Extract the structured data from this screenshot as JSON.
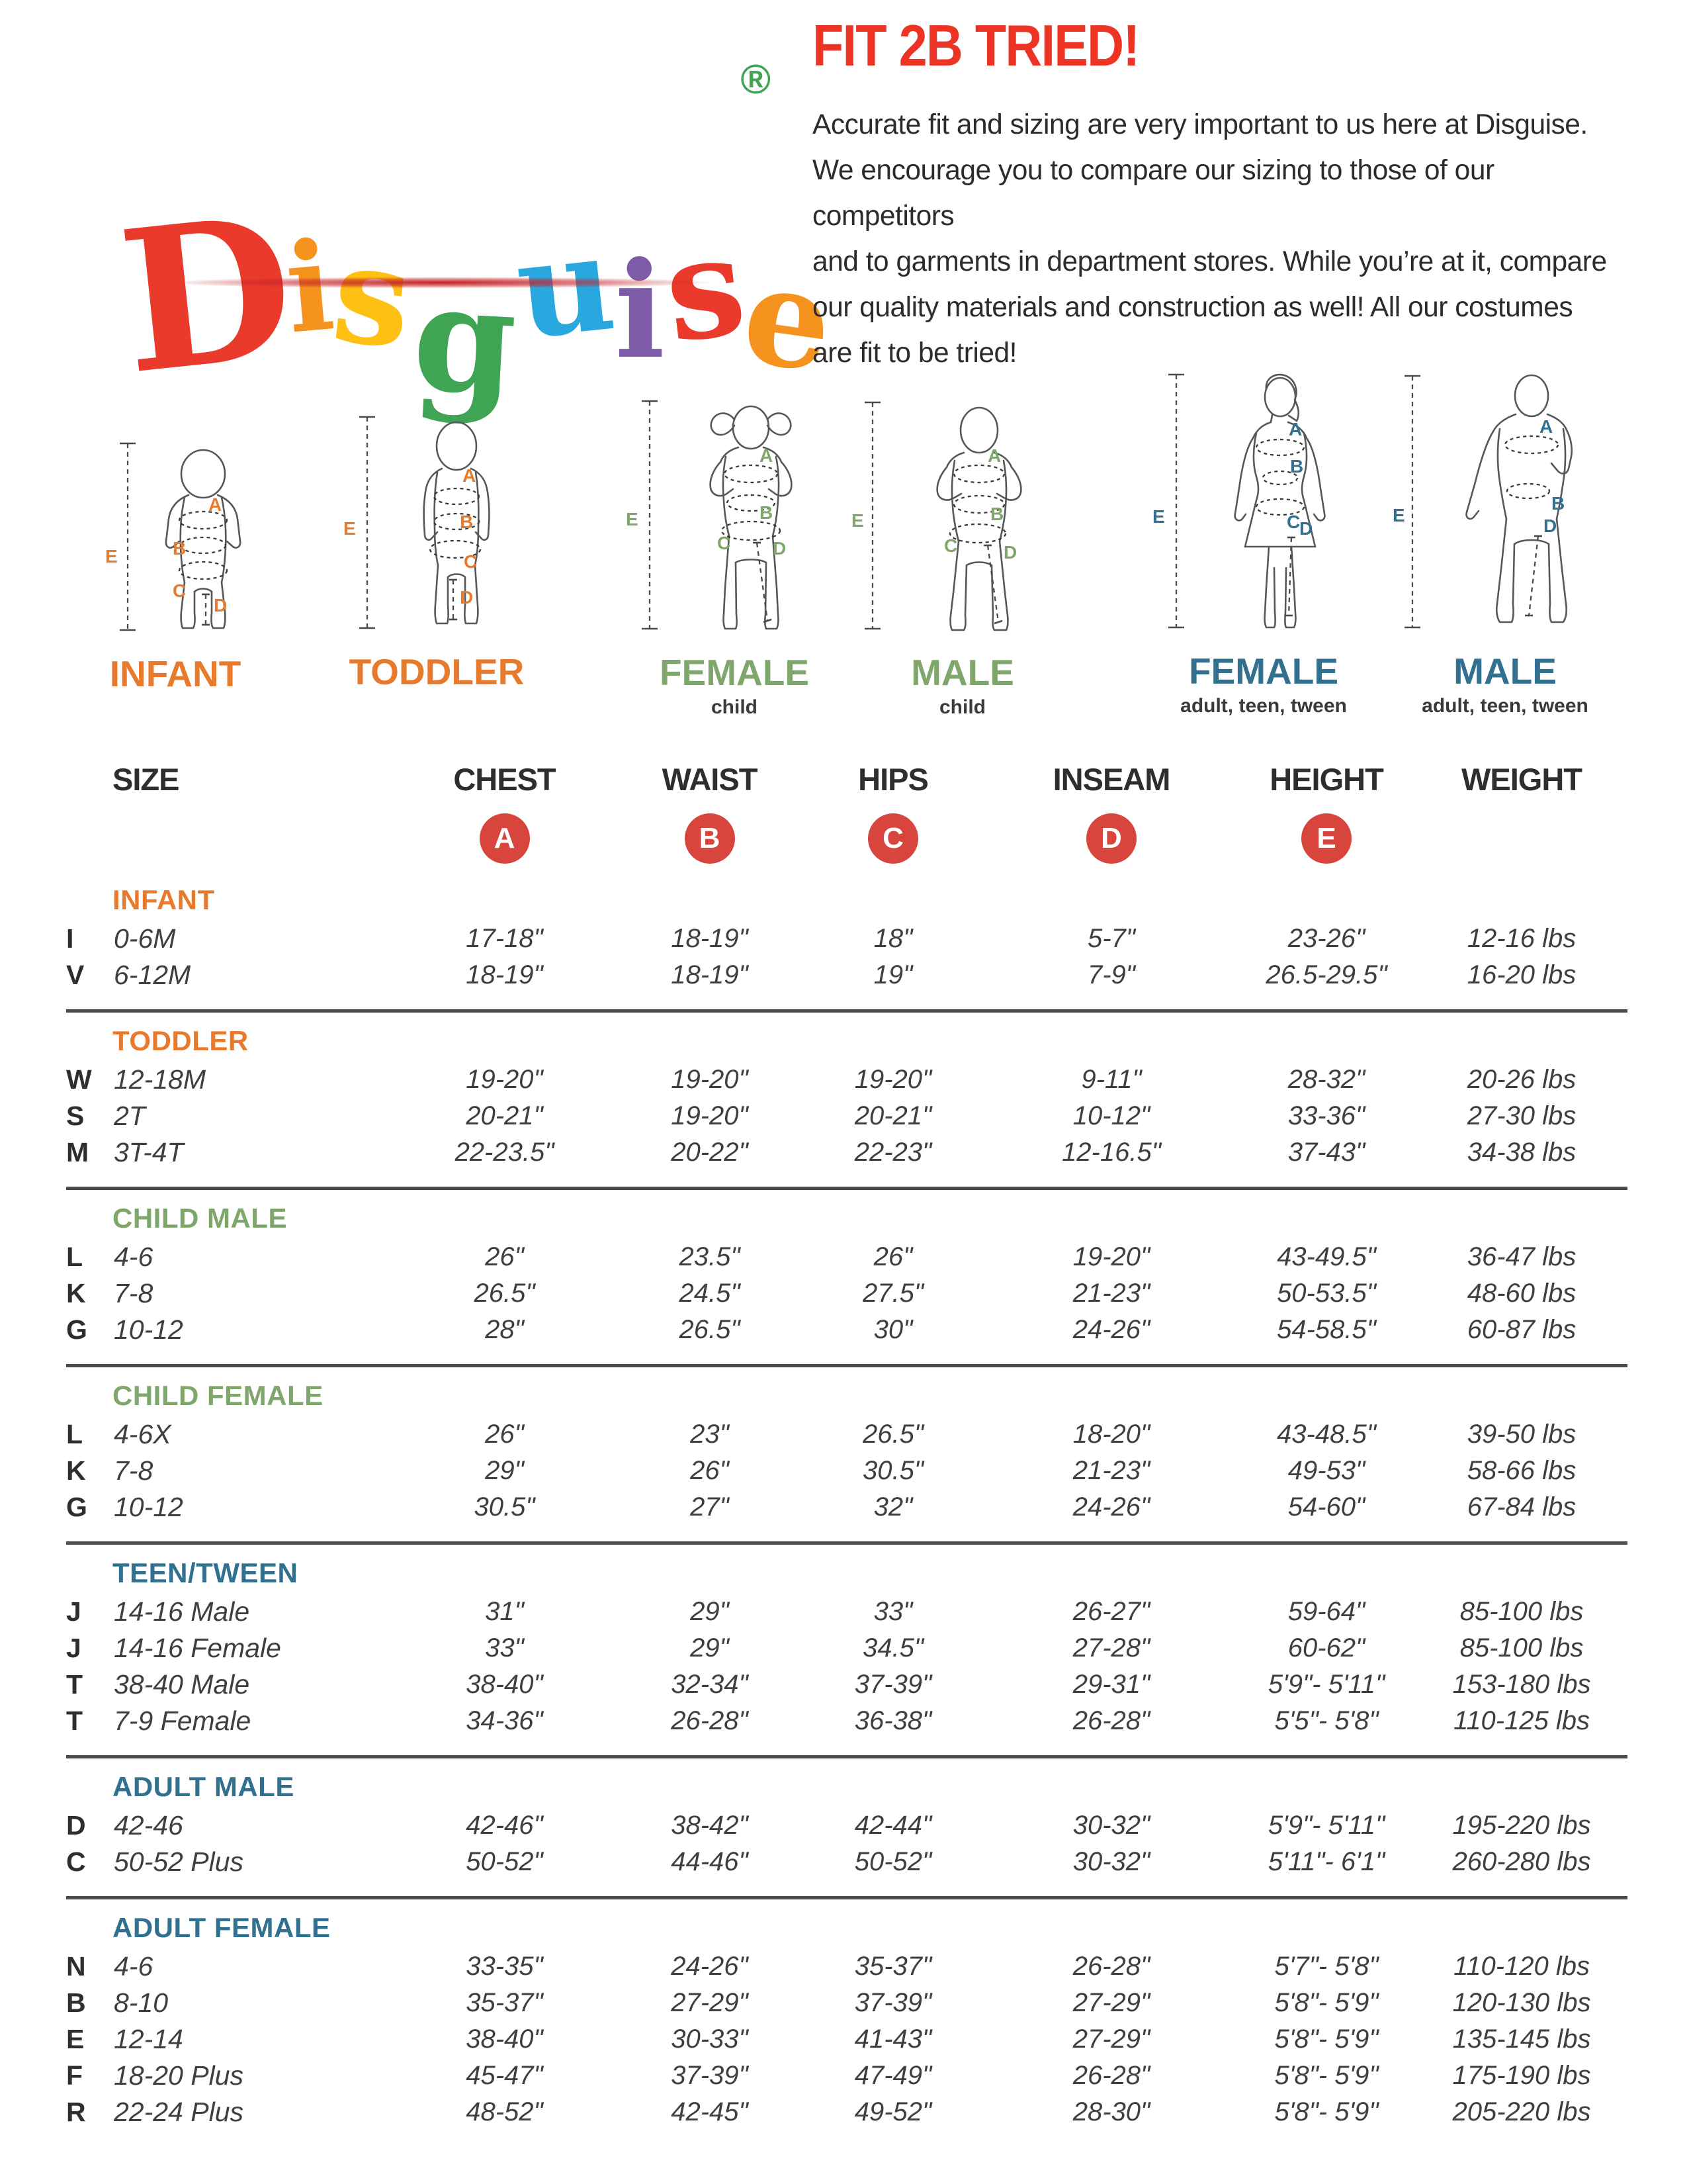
{
  "logo": {
    "word": "Disguise",
    "letters": [
      {
        "char": "D",
        "color": "#E93A2C"
      },
      {
        "char": "i",
        "color": "#F6921E"
      },
      {
        "char": "s",
        "color": "#FDC013"
      },
      {
        "char": "g",
        "color": "#3FA454"
      },
      {
        "char": "u",
        "color": "#29A8E0"
      },
      {
        "char": "i",
        "color": "#7E5BA6"
      },
      {
        "char": "s",
        "color": "#E93A2C"
      },
      {
        "char": "e",
        "color": "#F6921E"
      }
    ],
    "registered_mark": "®",
    "registered_color": "#3FA454",
    "underline_color": "#C42127"
  },
  "header": {
    "title": "FIT 2B TRIED!",
    "title_color": "#EC3324",
    "paragraph": "Accurate fit and sizing are very important to us here at Disguise.\nWe encourage you to compare our sizing to those of our competitors\nand to garments in department stores. While you’re at it, compare\nour quality materials and construction as well! All our costumes\nare fit to be tried!"
  },
  "measure": {
    "letters": [
      "A",
      "B",
      "C",
      "D",
      "E"
    ]
  },
  "figures": [
    {
      "label": "INFANT",
      "sublabel": "",
      "color": "#E87A2E"
    },
    {
      "label": "TODDLER",
      "sublabel": "",
      "color": "#E87A2E"
    },
    {
      "label": "FEMALE",
      "sublabel": "child",
      "color": "#7FA66B"
    },
    {
      "label": "MALE",
      "sublabel": "child",
      "color": "#7FA66B"
    },
    {
      "label": "FEMALE",
      "sublabel": "adult, teen, tween",
      "color": "#31708F"
    },
    {
      "label": "MALE",
      "sublabel": "adult, teen, tween",
      "color": "#31708F"
    }
  ],
  "table": {
    "columns": [
      "SIZE",
      "CHEST",
      "WAIST",
      "HIPS",
      "INSEAM",
      "HEIGHT",
      "WEIGHT"
    ],
    "badge_letters": [
      "A",
      "B",
      "C",
      "D",
      "E"
    ],
    "badge_color": "#D8453C",
    "sections": [
      {
        "name": "INFANT",
        "color": "#E87A2E",
        "rows": [
          {
            "code": "I",
            "size": "0-6M",
            "values": [
              "17-18\"",
              "18-19\"",
              "18\"",
              "5-7\"",
              "23-26\"",
              "12-16 lbs"
            ]
          },
          {
            "code": "V",
            "size": "6-12M",
            "values": [
              "18-19\"",
              "18-19\"",
              "19\"",
              "7-9\"",
              "26.5-29.5\"",
              "16-20 lbs"
            ]
          }
        ]
      },
      {
        "name": "TODDLER",
        "color": "#E87A2E",
        "rows": [
          {
            "code": "W",
            "size": "12-18M",
            "values": [
              "19-20\"",
              "19-20\"",
              "19-20\"",
              "9-11\"",
              "28-32\"",
              "20-26 lbs"
            ]
          },
          {
            "code": "S",
            "size": "2T",
            "values": [
              "20-21\"",
              "19-20\"",
              "20-21\"",
              "10-12\"",
              "33-36\"",
              "27-30 lbs"
            ]
          },
          {
            "code": "M",
            "size": "3T-4T",
            "values": [
              "22-23.5\"",
              "20-22\"",
              "22-23\"",
              "12-16.5\"",
              "37-43\"",
              "34-38 lbs"
            ]
          }
        ]
      },
      {
        "name": "CHILD MALE",
        "color": "#7FA66B",
        "rows": [
          {
            "code": "L",
            "size": "4-6",
            "values": [
              "26\"",
              "23.5\"",
              "26\"",
              "19-20\"",
              "43-49.5\"",
              "36-47 lbs"
            ]
          },
          {
            "code": "K",
            "size": "7-8",
            "values": [
              "26.5\"",
              "24.5\"",
              "27.5\"",
              "21-23\"",
              "50-53.5\"",
              "48-60 lbs"
            ]
          },
          {
            "code": "G",
            "size": "10-12",
            "values": [
              "28\"",
              "26.5\"",
              "30\"",
              "24-26\"",
              "54-58.5\"",
              "60-87 lbs"
            ]
          }
        ]
      },
      {
        "name": "CHILD FEMALE",
        "color": "#7FA66B",
        "rows": [
          {
            "code": "L",
            "size": "4-6X",
            "values": [
              "26\"",
              "23\"",
              "26.5\"",
              "18-20\"",
              "43-48.5\"",
              "39-50 lbs"
            ]
          },
          {
            "code": "K",
            "size": "7-8",
            "values": [
              "29\"",
              "26\"",
              "30.5\"",
              "21-23\"",
              "49-53\"",
              "58-66 lbs"
            ]
          },
          {
            "code": "G",
            "size": "10-12",
            "values": [
              "30.5\"",
              "27\"",
              "32\"",
              "24-26\"",
              "54-60\"",
              "67-84 lbs"
            ]
          }
        ]
      },
      {
        "name": "TEEN/TWEEN",
        "color": "#31708F",
        "rows": [
          {
            "code": "J",
            "size": "14-16 Male",
            "values": [
              "31\"",
              "29\"",
              "33\"",
              "26-27\"",
              "59-64\"",
              "85-100 lbs"
            ]
          },
          {
            "code": "J",
            "size": "14-16 Female",
            "values": [
              "33\"",
              "29\"",
              "34.5\"",
              "27-28\"",
              "60-62\"",
              "85-100 lbs"
            ]
          },
          {
            "code": "T",
            "size": "38-40 Male",
            "values": [
              "38-40\"",
              "32-34\"",
              "37-39\"",
              "29-31\"",
              "5'9\"- 5'11\"",
              "153-180 lbs"
            ]
          },
          {
            "code": "T",
            "size": "7-9 Female",
            "values": [
              "34-36\"",
              "26-28\"",
              "36-38\"",
              "26-28\"",
              "5'5\"- 5'8\"",
              "110-125 lbs"
            ]
          }
        ]
      },
      {
        "name": "ADULT MALE",
        "color": "#31708F",
        "rows": [
          {
            "code": "D",
            "size": "42-46",
            "values": [
              "42-46\"",
              "38-42\"",
              "42-44\"",
              "30-32\"",
              "5'9\"- 5'11\"",
              "195-220 lbs"
            ]
          },
          {
            "code": "C",
            "size": "50-52 Plus",
            "values": [
              "50-52\"",
              "44-46\"",
              "50-52\"",
              "30-32\"",
              "5'11\"- 6'1\"",
              "260-280 lbs"
            ]
          }
        ]
      },
      {
        "name": "ADULT FEMALE",
        "color": "#31708F",
        "rows": [
          {
            "code": "N",
            "size": "4-6",
            "values": [
              "33-35\"",
              "24-26\"",
              "35-37\"",
              "26-28\"",
              "5'7\"- 5'8\"",
              "110-120 lbs"
            ]
          },
          {
            "code": "B",
            "size": "8-10",
            "values": [
              "35-37\"",
              "27-29\"",
              "37-39\"",
              "27-29\"",
              "5'8\"- 5'9\"",
              "120-130 lbs"
            ]
          },
          {
            "code": "E",
            "size": "12-14",
            "values": [
              "38-40\"",
              "30-33\"",
              "41-43\"",
              "27-29\"",
              "5'8\"- 5'9\"",
              "135-145 lbs"
            ]
          },
          {
            "code": "F",
            "size": "18-20 Plus",
            "values": [
              "45-47\"",
              "37-39\"",
              "47-49\"",
              "26-28\"",
              "5'8\"- 5'9\"",
              "175-190 lbs"
            ]
          },
          {
            "code": "R",
            "size": "22-24 Plus",
            "values": [
              "48-52\"",
              "42-45\"",
              "49-52\"",
              "28-30\"",
              "5'8\"- 5'9\"",
              "205-220 lbs"
            ]
          }
        ]
      }
    ]
  }
}
